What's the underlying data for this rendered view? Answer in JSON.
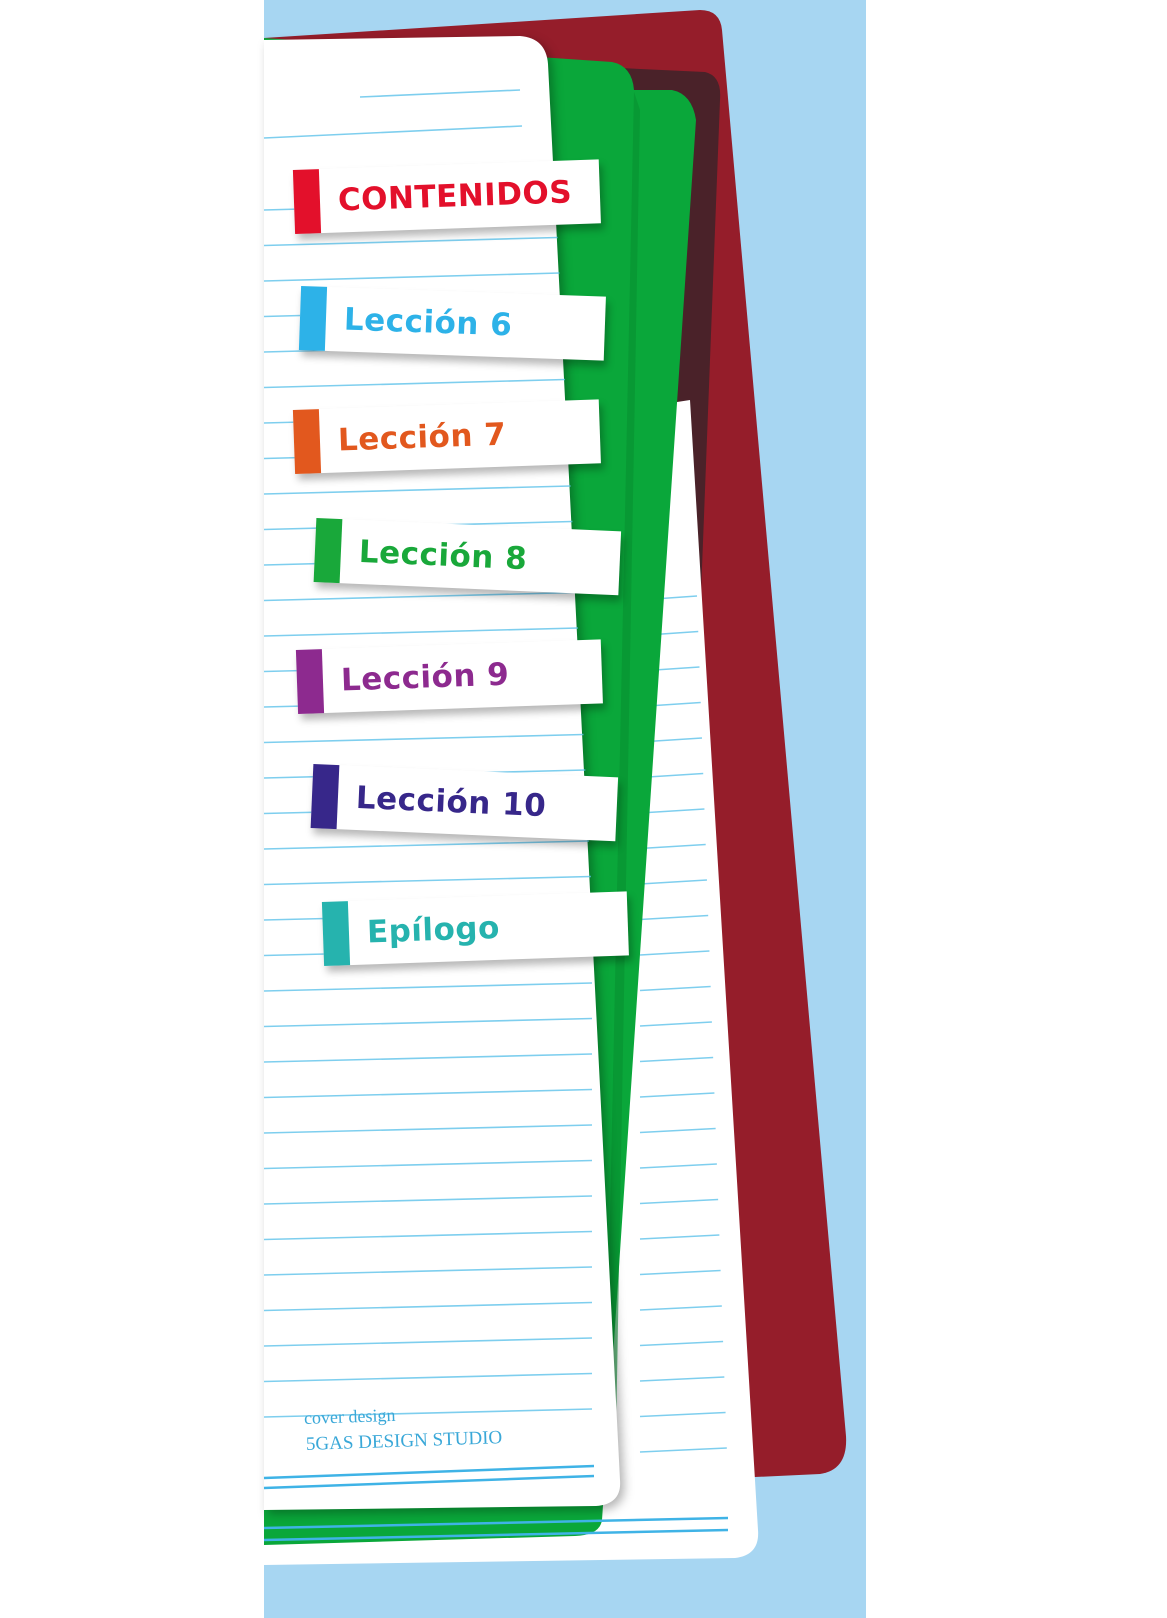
{
  "colors": {
    "background": "#a7d6f2",
    "back_cover": "#951d2a",
    "dark_strip": "#4a2229",
    "green_page": "#0aa73a",
    "page": "#ffffff",
    "rule_line": "#5ec3ea"
  },
  "tabs": [
    {
      "label": "CONTENIDOS",
      "color": "#e3102b"
    },
    {
      "label": "Lección 6",
      "color": "#2db2e8"
    },
    {
      "label": "Lección 7",
      "color": "#e2581e"
    },
    {
      "label": "Lección 8",
      "color": "#19a83a"
    },
    {
      "label": "Lección 9",
      "color": "#8d2a8f"
    },
    {
      "label": "Lección 10",
      "color": "#37278a"
    },
    {
      "label": "Epílogo",
      "color": "#26b3ae"
    }
  ],
  "credits": {
    "line1": "cover design",
    "line2": "5GAS DESIGN STUDIO"
  }
}
